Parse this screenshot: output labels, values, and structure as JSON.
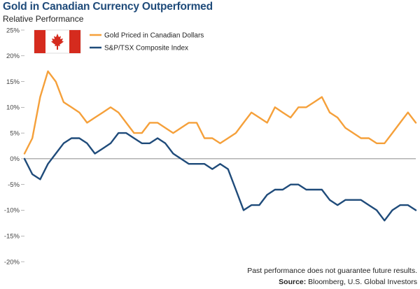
{
  "header": {
    "title": "Gold in Canadian Currency Outperformed",
    "subtitle": "Relative Performance"
  },
  "footer": {
    "disclaimer": "Past performance does not guarantee future results.",
    "source_label": "Source:",
    "source_text": "Bloomberg, U.S. Global Investors"
  },
  "flag": {
    "country": "Canada",
    "icon": "canada-flag-icon",
    "red": "#d52b1e",
    "white": "#ffffff"
  },
  "chart_data": {
    "type": "line",
    "title": "Gold in Canadian Currency Outperformed",
    "subtitle": "Relative Performance",
    "xlabel": "",
    "ylabel": "",
    "ylim": [
      -20,
      25
    ],
    "yticks": [
      25,
      20,
      15,
      10,
      5,
      0,
      -5,
      -10,
      -15,
      -20
    ],
    "ytick_labels": [
      "25%",
      "20%",
      "15%",
      "10%",
      "5%",
      "0%",
      "-5%",
      "-10%",
      "-15%",
      "-20%"
    ],
    "grid": false,
    "zero_line": true,
    "legend_position": "top-left",
    "x_index": [
      0,
      2,
      4,
      6,
      8,
      10,
      12,
      14,
      16,
      18,
      20,
      22,
      24,
      26,
      28,
      30,
      32,
      34,
      36,
      38,
      40,
      42,
      44,
      46,
      48,
      50,
      52,
      54,
      56,
      58,
      60,
      62,
      64,
      66,
      68,
      70,
      72,
      74,
      76,
      78,
      80,
      82,
      84,
      86,
      88,
      90,
      92,
      94,
      96,
      98,
      100
    ],
    "series": [
      {
        "name": "Gold Priced in Canadian Dollars",
        "color": "#f5a03a",
        "values": [
          1,
          4,
          12,
          17,
          15,
          11,
          10,
          9,
          7,
          8,
          9,
          10,
          9,
          7,
          5,
          5,
          7,
          7,
          6,
          5,
          6,
          7,
          7,
          4,
          4,
          3,
          4,
          5,
          7,
          9,
          8,
          7,
          10,
          9,
          8,
          10,
          10,
          11,
          12,
          9,
          8,
          6,
          5,
          4,
          4,
          3,
          3,
          5,
          7,
          9,
          7
        ]
      },
      {
        "name": "S&P/TSX Composite Index",
        "color": "#1f4b7a",
        "values": [
          0,
          -3,
          -4,
          -1,
          1,
          3,
          4,
          4,
          3,
          1,
          2,
          3,
          5,
          5,
          4,
          3,
          3,
          4,
          3,
          1,
          0,
          -1,
          -1,
          -1,
          -2,
          -1,
          -2,
          -6,
          -10,
          -9,
          -9,
          -7,
          -6,
          -6,
          -5,
          -5,
          -6,
          -6,
          -6,
          -8,
          -9,
          -8,
          -8,
          -8,
          -9,
          -10,
          -12,
          -10,
          -9,
          -9,
          -10
        ]
      }
    ]
  }
}
